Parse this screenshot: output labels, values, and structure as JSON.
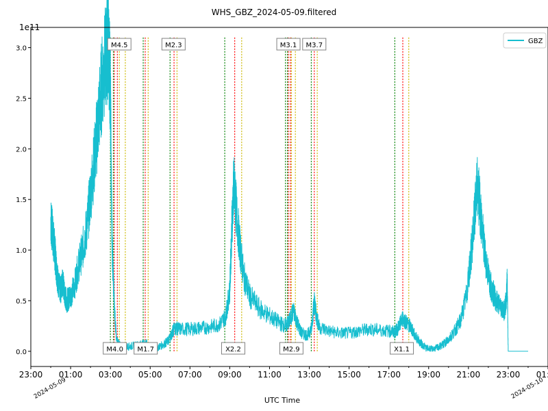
{
  "chart_data": {
    "type": "line",
    "title": "WHS_GBZ_2024-05-09.filtered",
    "xlabel": "UTC Time",
    "ylabel": "",
    "y_scale_label": "1e11",
    "y_multiplier": 100000000000,
    "ylim": [
      -0.15,
      3.2
    ],
    "y_ticks": [
      0.0,
      0.5,
      1.0,
      1.5,
      2.0,
      2.5,
      3.0
    ],
    "y_tick_labels": [
      "0.0",
      "0.5",
      "1.0",
      "1.5",
      "2.0",
      "2.5",
      "3.0"
    ],
    "xlim_hours": [
      -1.0,
      25.0
    ],
    "x_ticks_hours": [
      -1,
      1,
      3,
      5,
      7,
      9,
      11,
      13,
      15,
      17,
      19,
      21,
      23,
      25
    ],
    "x_tick_labels": [
      "23:00",
      "01:00",
      "03:00",
      "05:00",
      "07:00",
      "09:00",
      "11:00",
      "13:00",
      "15:00",
      "17:00",
      "19:00",
      "21:00",
      "23:00",
      "01:00"
    ],
    "date_labels": [
      {
        "text": "2024-05-09",
        "hour": 0.0
      },
      {
        "text": "2024-05-10",
        "hour": 24.0
      }
    ],
    "grid": false,
    "legend_position": "top-right",
    "series": [
      {
        "name": "GBZ",
        "color": "#17becf",
        "x_hours": [
          0.0,
          0.1,
          0.2,
          0.3,
          0.4,
          0.5,
          0.6,
          0.7,
          0.8,
          0.9,
          1.0,
          1.2,
          1.4,
          1.6,
          1.8,
          2.0,
          2.2,
          2.4,
          2.6,
          2.8,
          2.9,
          3.0,
          3.05,
          3.1,
          3.2,
          3.3,
          3.5,
          3.7,
          4.0,
          4.3,
          4.6,
          4.8,
          5.0,
          5.3,
          5.6,
          5.9,
          6.1,
          6.2,
          6.5,
          7.0,
          7.5,
          8.0,
          8.5,
          8.8,
          9.0,
          9.1,
          9.2,
          9.3,
          9.5,
          9.7,
          10.0,
          10.5,
          11.0,
          11.5,
          11.8,
          12.0,
          12.2,
          12.4,
          12.6,
          12.9,
          13.1,
          13.25,
          13.35,
          13.5,
          14.0,
          14.5,
          15.0,
          15.5,
          16.0,
          16.5,
          17.0,
          17.3,
          17.5,
          17.7,
          17.9,
          18.1,
          18.3,
          18.6,
          18.9,
          19.2,
          19.5,
          19.8,
          20.0,
          20.3,
          20.6,
          20.9,
          21.1,
          21.3,
          21.45,
          21.6,
          21.8,
          22.0,
          22.2,
          22.4,
          22.6,
          22.8,
          22.9,
          22.95,
          23.0,
          23.5,
          24.0
        ],
        "values": [
          1.3,
          1.15,
          1.0,
          0.8,
          0.65,
          0.6,
          0.7,
          0.55,
          0.5,
          0.52,
          0.55,
          0.65,
          0.85,
          1.0,
          1.2,
          1.55,
          1.9,
          2.3,
          2.7,
          2.95,
          3.05,
          2.6,
          1.6,
          0.95,
          0.45,
          0.12,
          0.05,
          0.04,
          0.05,
          0.06,
          0.07,
          0.08,
          0.02,
          0.03,
          0.06,
          0.1,
          0.18,
          0.23,
          0.22,
          0.22,
          0.23,
          0.24,
          0.27,
          0.35,
          0.6,
          1.2,
          1.65,
          1.45,
          1.05,
          0.75,
          0.55,
          0.42,
          0.35,
          0.28,
          0.25,
          0.3,
          0.4,
          0.28,
          0.18,
          0.16,
          0.22,
          0.5,
          0.35,
          0.24,
          0.2,
          0.18,
          0.18,
          0.2,
          0.22,
          0.21,
          0.2,
          0.19,
          0.24,
          0.33,
          0.28,
          0.24,
          0.16,
          0.08,
          0.03,
          0.02,
          0.04,
          0.08,
          0.12,
          0.2,
          0.3,
          0.55,
          0.9,
          1.3,
          1.65,
          1.4,
          1.0,
          0.75,
          0.6,
          0.5,
          0.45,
          0.4,
          0.5,
          0.7,
          0.0,
          0.0,
          0.0
        ]
      }
    ],
    "flares": [
      {
        "label": "M4.5",
        "box": "top",
        "start": 3.15,
        "peak": 3.35,
        "end": 3.75
      },
      {
        "label": "M4.0",
        "box": "bottom",
        "start": 3.0,
        "peak": 3.2,
        "end": 3.45
      },
      {
        "label": "M1.7",
        "box": "bottom",
        "start": 4.65,
        "peak": 4.75,
        "end": 4.9
      },
      {
        "label": "M2.3",
        "box": "top",
        "start": 6.0,
        "peak": 6.2,
        "end": 6.35
      },
      {
        "label": "X2.2",
        "box": "bottom",
        "start": 8.75,
        "peak": 9.25,
        "end": 9.6
      },
      {
        "label": "M3.1",
        "box": "top",
        "start": 11.8,
        "peak": 11.95,
        "end": 12.1
      },
      {
        "label": "M2.9",
        "box": "bottom",
        "start": 11.9,
        "peak": 12.05,
        "end": 12.3
      },
      {
        "label": "M3.7",
        "box": "top",
        "start": 13.1,
        "peak": 13.25,
        "end": 13.4
      },
      {
        "label": "X1.1",
        "box": "bottom",
        "start": 17.3,
        "peak": 17.7,
        "end": 18.0
      }
    ],
    "flare_line_colors": {
      "start": "#008000",
      "peak": "#ff0000",
      "end": "#ccb800"
    }
  }
}
